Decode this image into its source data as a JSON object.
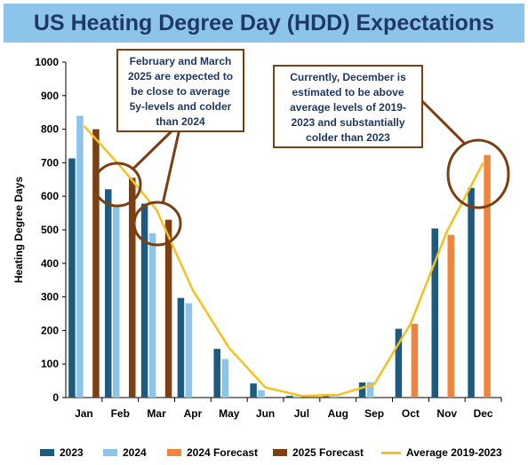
{
  "title": "US Heating Degree Day (HDD) Expectations",
  "chart_data": {
    "type": "bar",
    "ylabel": "Heating Degree Days",
    "xlabel": "",
    "ylim": [
      0,
      1000
    ],
    "yticks": [
      0,
      100,
      200,
      300,
      400,
      500,
      600,
      700,
      800,
      900,
      1000
    ],
    "categories": [
      "Jan",
      "Feb",
      "Mar",
      "Apr",
      "May",
      "Jun",
      "Jul",
      "Aug",
      "Sep",
      "Oct",
      "Nov",
      "Dec"
    ],
    "series": [
      {
        "name": "2023",
        "color": "#1c5a80",
        "kind": "bar",
        "values": [
          713,
          621,
          578,
          297,
          145,
          42,
          5,
          10,
          45,
          205,
          504,
          625
        ]
      },
      {
        "name": "2024",
        "color": "#8cc4ea",
        "kind": "bar",
        "values": [
          840,
          572,
          490,
          281,
          115,
          22,
          4,
          5,
          46,
          null,
          null,
          null
        ]
      },
      {
        "name": "2024 Forecast",
        "color": "#f0843c",
        "kind": "bar",
        "values": [
          null,
          null,
          null,
          null,
          null,
          null,
          null,
          null,
          null,
          220,
          485,
          723
        ]
      },
      {
        "name": "2025 Forecast",
        "color": "#7b3f12",
        "kind": "bar",
        "values": [
          800,
          655,
          530,
          null,
          null,
          null,
          null,
          null,
          null,
          null,
          null,
          null
        ]
      },
      {
        "name": "Average 2019-2023",
        "color": "#f5c21b",
        "kind": "line",
        "values": [
          810,
          690,
          560,
          320,
          148,
          30,
          5,
          8,
          40,
          220,
          495,
          700
        ]
      }
    ],
    "annotations": [
      "February and March 2025 are expected to be close to average 5y-levels and colder than 2024",
      "Currently, December is estimated to be above average levels of 2019-2023 and substantially colder than 2023"
    ]
  }
}
